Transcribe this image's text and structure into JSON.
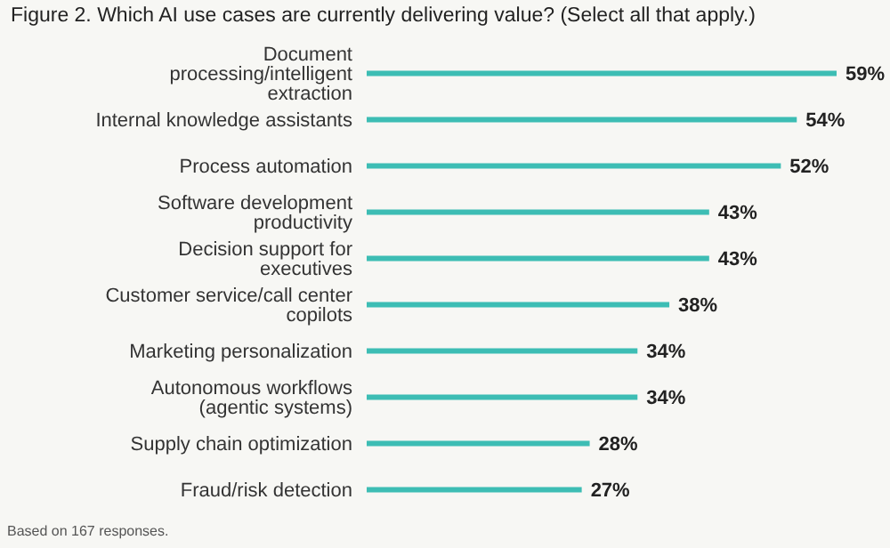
{
  "chart_data": {
    "type": "bar",
    "orientation": "horizontal",
    "title": "Figure 2. Which AI use cases are currently delivering value? (Select all that apply.)",
    "categories": [
      "Document processing/intelligent extraction",
      "Internal knowledge assistants",
      "Process automation",
      "Software development productivity",
      "Decision support for executives",
      "Customer service/call center copilots",
      "Marketing personalization",
      "Autonomous workflows (agentic systems)",
      "Supply chain optimization",
      "Fraud/risk detection"
    ],
    "values": [
      59,
      54,
      52,
      43,
      43,
      38,
      34,
      34,
      28,
      27
    ],
    "value_labels": [
      "59%",
      "54%",
      "52%",
      "43%",
      "43%",
      "38%",
      "34%",
      "34%",
      "28%",
      "27%"
    ],
    "color": "#3dbdb4",
    "annotations": [
      "Based on 167 responses."
    ]
  }
}
